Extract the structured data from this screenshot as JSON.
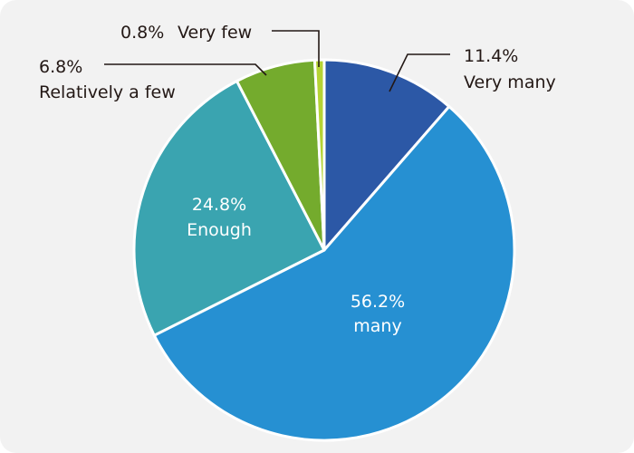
{
  "chart_data": {
    "type": "pie",
    "title": "",
    "start": "12 o'clock",
    "direction": "clockwise",
    "slices": [
      {
        "label": "Very many",
        "value": 11.4,
        "value_text": "11.4%",
        "color": "#2c58a6",
        "label_color": "#231815"
      },
      {
        "label": "many",
        "value": 56.2,
        "value_text": "56.2%",
        "color": "#2690d2",
        "label_color": "#ffffff"
      },
      {
        "label": "Enough",
        "value": 24.8,
        "value_text": "24.8%",
        "color": "#3aa4b0",
        "label_color": "#ffffff"
      },
      {
        "label": "Relatively a few",
        "value": 6.8,
        "value_text": "6.8%",
        "color": "#74ab2d",
        "label_color": "#231815"
      },
      {
        "label": "Very few",
        "value": 0.8,
        "value_text": "0.8%",
        "color": "#b5d334",
        "label_color": "#231815"
      }
    ]
  }
}
